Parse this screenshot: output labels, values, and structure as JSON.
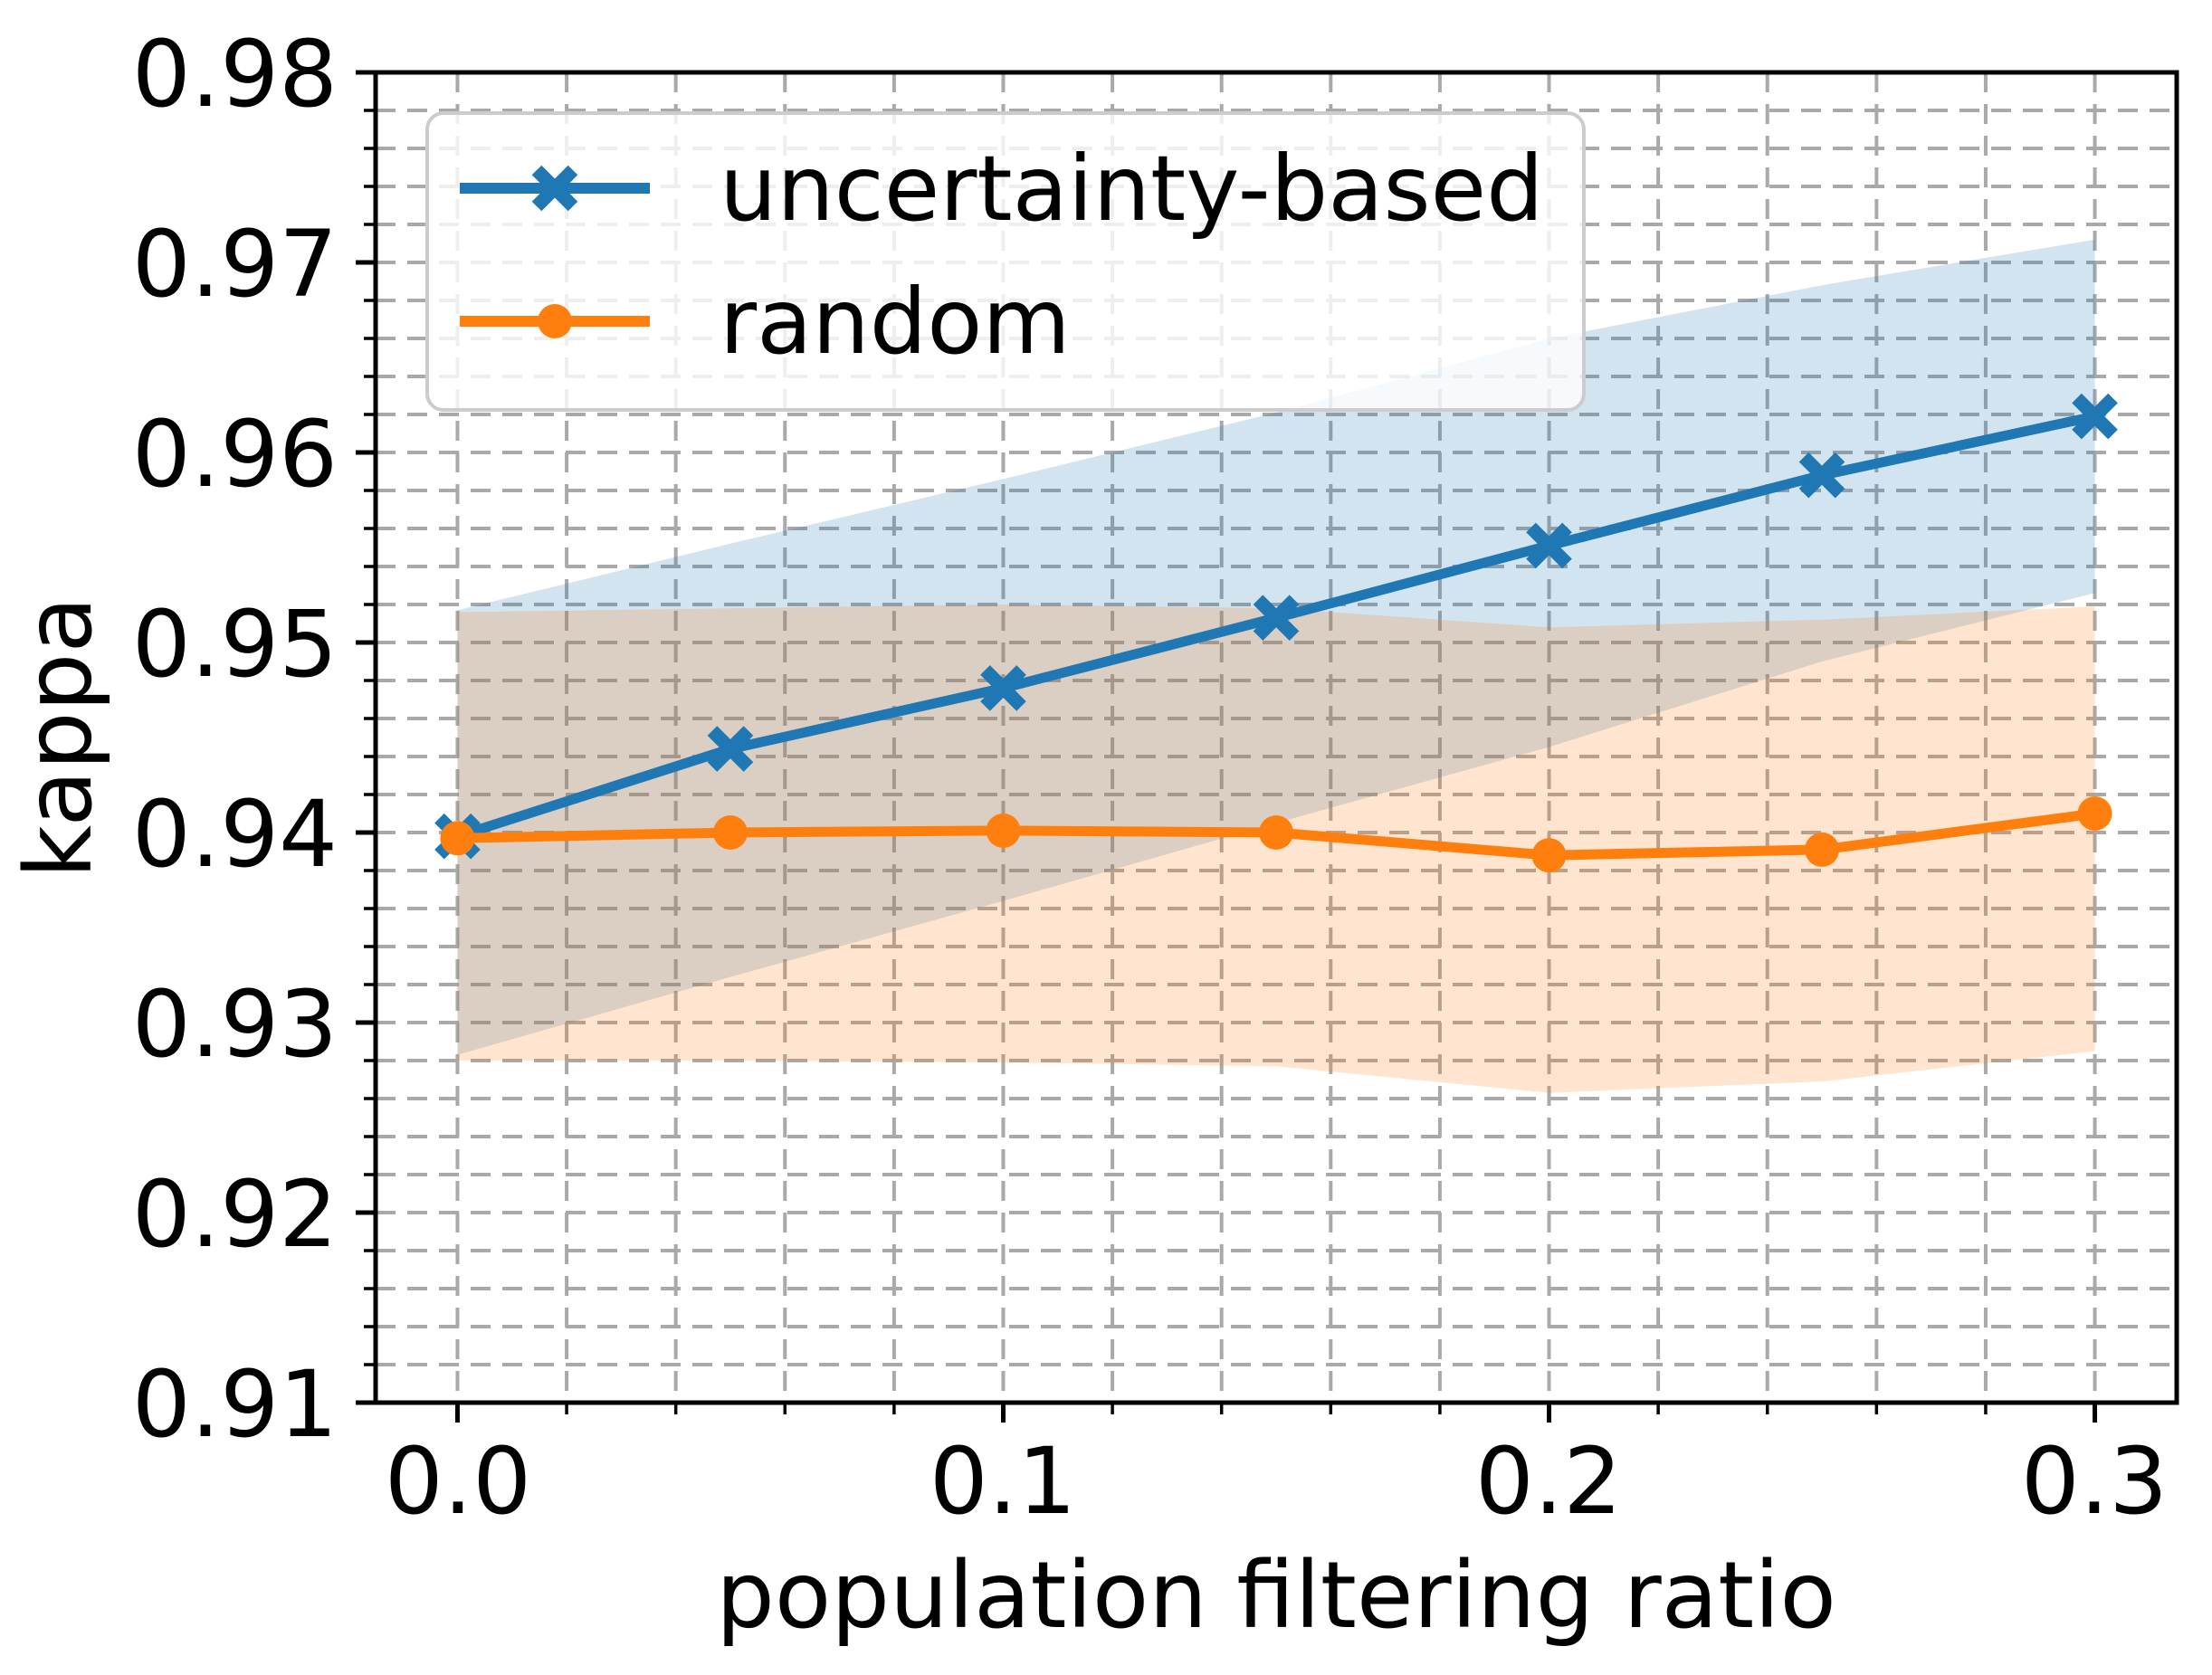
{
  "chart_data": {
    "type": "line",
    "title": "",
    "xlabel": "population filtering ratio",
    "ylabel": "kappa",
    "x": [
      0.0,
      0.05,
      0.1,
      0.15,
      0.2,
      0.25,
      0.3
    ],
    "series": [
      {
        "name": "uncertainty-based",
        "color": "#1f77b4",
        "marker": "X",
        "values": [
          0.9398,
          0.9444,
          0.9476,
          0.9513,
          0.9551,
          0.9588,
          0.9619
        ],
        "band_upper": [
          0.9517,
          0.9552,
          0.9586,
          0.9621,
          0.966,
          0.9688,
          0.9712
        ],
        "band_lower": [
          0.9283,
          0.9324,
          0.9364,
          0.9405,
          0.9445,
          0.949,
          0.9526
        ]
      },
      {
        "name": "random",
        "color": "#ff7f0e",
        "marker": "circle",
        "values": [
          0.9397,
          0.94,
          0.9401,
          0.94,
          0.9388,
          0.9391,
          0.941
        ],
        "band_upper": [
          0.9516,
          0.9518,
          0.952,
          0.9518,
          0.9508,
          0.9512,
          0.9519
        ],
        "band_lower": [
          0.928,
          0.928,
          0.9279,
          0.9277,
          0.9263,
          0.9269,
          0.9285
        ]
      }
    ],
    "band_alpha": 0.2,
    "xlim": [
      -0.015,
      0.315
    ],
    "ylim": [
      0.91,
      0.98
    ],
    "xticks_major": [
      0.0,
      0.1,
      0.2,
      0.3
    ],
    "xtick_labels": [
      "0.0",
      "0.1",
      "0.2",
      "0.3"
    ],
    "xtick_minor_step": 0.02,
    "yticks_major": [
      0.91,
      0.92,
      0.93,
      0.94,
      0.95,
      0.96,
      0.97,
      0.98
    ],
    "ytick_labels": [
      "0.91",
      "0.92",
      "0.93",
      "0.94",
      "0.95",
      "0.96",
      "0.97",
      "0.98"
    ],
    "ytick_minor_step": 0.002,
    "grid": {
      "visible": true,
      "style": "dashed",
      "color": "#a9a9a9",
      "which": "both"
    },
    "legend": {
      "position": "upper left",
      "labels": [
        "uncertainty-based",
        "random"
      ]
    },
    "colors": {
      "axis": "#000000",
      "legend_border": "#cccccc",
      "background": "#ffffff"
    }
  }
}
